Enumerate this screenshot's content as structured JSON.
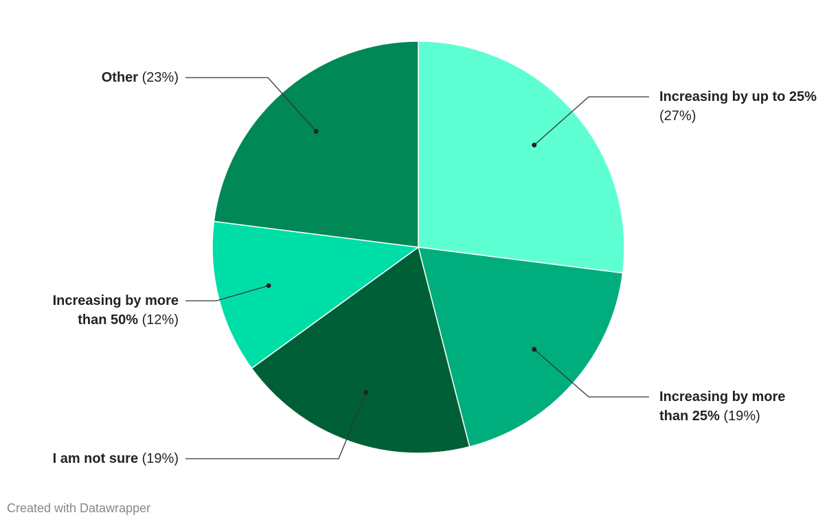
{
  "chart_data": {
    "type": "pie",
    "categories": [
      "Increasing by up to 25%",
      "Increasing by more than 25%",
      "I am not sure",
      "Increasing by more than 50%",
      "Other"
    ],
    "values": [
      27,
      19,
      19,
      12,
      23
    ],
    "value_labels": [
      "(27%)",
      "(19%)",
      "(19%)",
      "(12%)",
      "(23%)"
    ],
    "colors": [
      "#5effd2",
      "#00ae7d",
      "#005f37",
      "#00dea7",
      "#008856"
    ]
  },
  "credit": "Created with Datawrapper"
}
